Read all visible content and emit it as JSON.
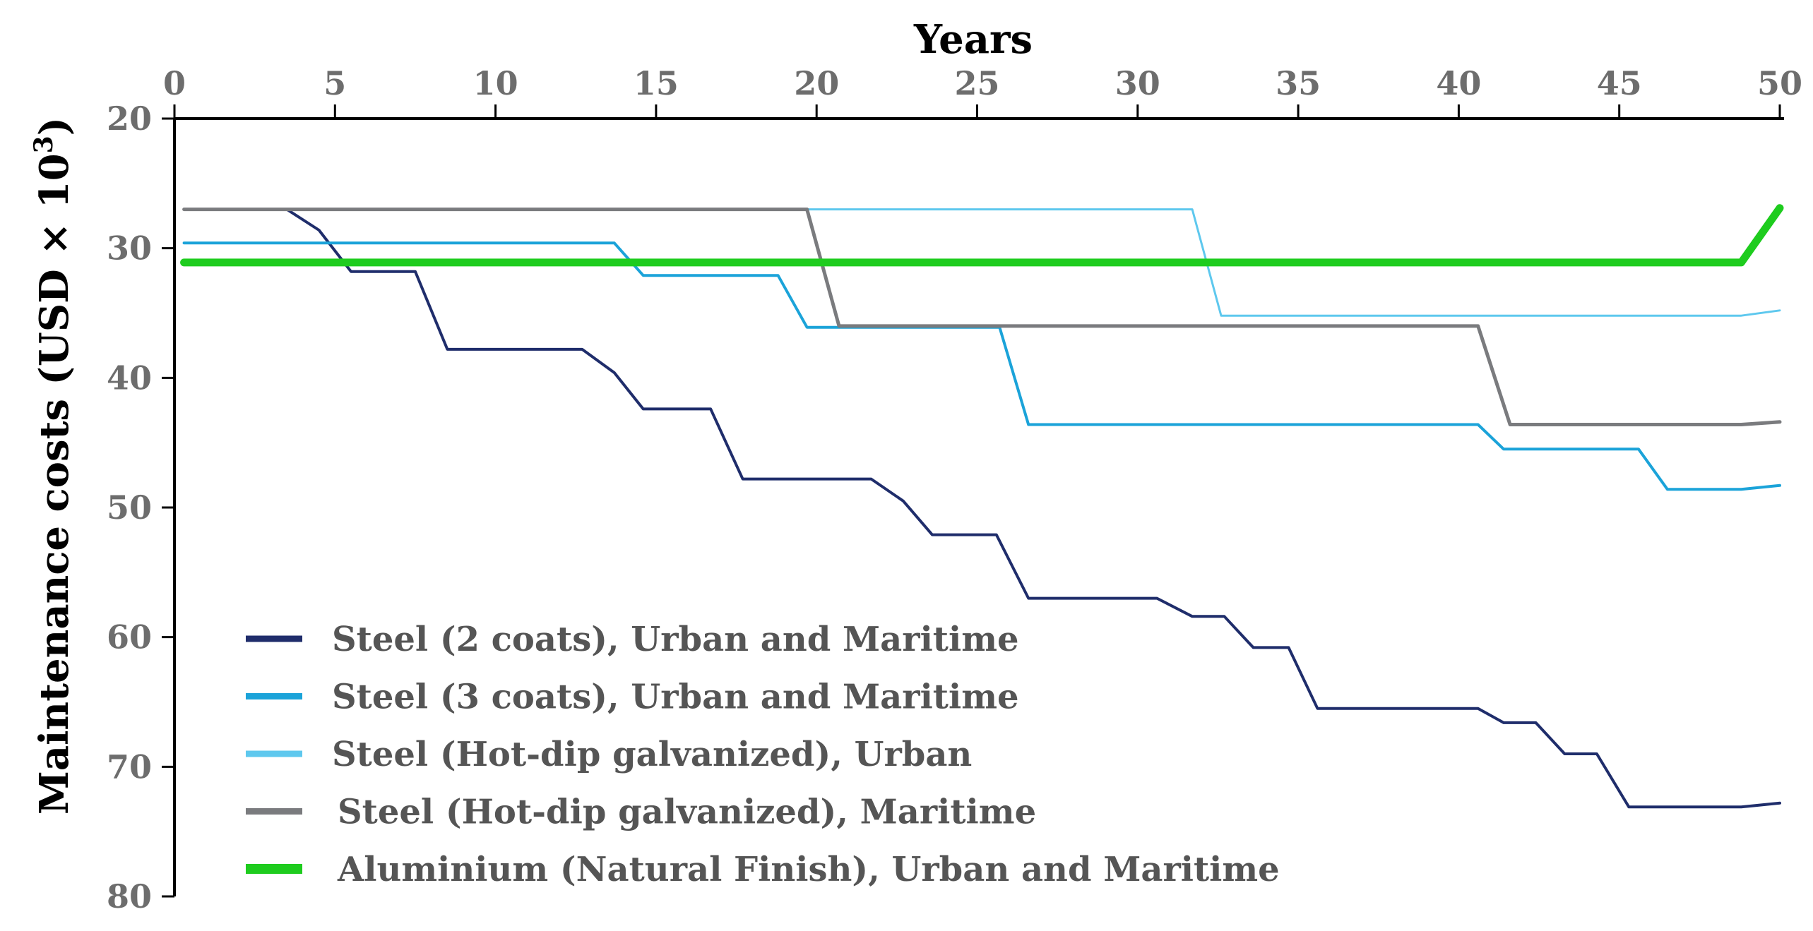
{
  "chart_data": {
    "type": "line",
    "title": "",
    "xlabel": "Years",
    "ylabel": "Maintenance costs  (USD × 10",
    "ylabel_superscript": "3",
    "ylabel_close": ")",
    "xlim": [
      0,
      50
    ],
    "ylim": [
      20,
      80
    ],
    "y_inverted": true,
    "x_axis_position": "top",
    "x_ticks": [
      0,
      5,
      10,
      15,
      20,
      25,
      30,
      35,
      40,
      45,
      50
    ],
    "x_tick_labels": [
      "0",
      "5",
      "10",
      "15",
      "20",
      "25",
      "30",
      "35",
      "40",
      "45",
      "50"
    ],
    "y_ticks": [
      20,
      30,
      40,
      50,
      60,
      70,
      80
    ],
    "y_tick_labels": [
      "20",
      "30",
      "40",
      "50",
      "60",
      "70",
      "80"
    ],
    "grid": false,
    "legend_position": "bottom-left",
    "series": [
      {
        "name": "Steel (2 coats), Urban and Maritime",
        "color": "#1f2d6b",
        "width": 4,
        "points": [
          [
            0.3,
            27
          ],
          [
            3.5,
            27
          ],
          [
            4.5,
            28.6
          ],
          [
            5.5,
            31.8
          ],
          [
            7.5,
            31.8
          ],
          [
            8.5,
            37.8
          ],
          [
            12.7,
            37.8
          ],
          [
            13.7,
            39.6
          ],
          [
            14.6,
            42.4
          ],
          [
            16.7,
            42.4
          ],
          [
            17.7,
            47.8
          ],
          [
            21.7,
            47.8
          ],
          [
            22.7,
            49.5
          ],
          [
            23.6,
            52.1
          ],
          [
            25.6,
            52.1
          ],
          [
            26.6,
            57
          ],
          [
            30.6,
            57
          ],
          [
            31.7,
            58.4
          ],
          [
            32.7,
            58.4
          ],
          [
            33.6,
            60.8
          ],
          [
            34.7,
            60.8
          ],
          [
            35.6,
            65.5
          ],
          [
            40.6,
            65.5
          ],
          [
            41.4,
            66.6
          ],
          [
            42.4,
            66.6
          ],
          [
            43.3,
            69
          ],
          [
            44.3,
            69
          ],
          [
            45.3,
            73.1
          ],
          [
            48.8,
            73.1
          ],
          [
            50,
            72.8
          ]
        ]
      },
      {
        "name": "Steel (3 coats), Urban and Maritime",
        "color": "#1ba3d9",
        "width": 4,
        "points": [
          [
            0.3,
            29.6
          ],
          [
            13.7,
            29.6
          ],
          [
            14.6,
            32.1
          ],
          [
            18.8,
            32.1
          ],
          [
            19.7,
            36.1
          ],
          [
            25.7,
            36.1
          ],
          [
            26.6,
            43.6
          ],
          [
            40.6,
            43.6
          ],
          [
            41.4,
            45.5
          ],
          [
            45.6,
            45.5
          ],
          [
            46.5,
            48.6
          ],
          [
            48.8,
            48.6
          ],
          [
            50,
            48.3
          ]
        ]
      },
      {
        "name": "Steel (Hot-dip galvanized), Urban",
        "color": "#5ec8ee",
        "width": 3,
        "points": [
          [
            0.3,
            27
          ],
          [
            31.7,
            27
          ],
          [
            32.6,
            35.2
          ],
          [
            48.8,
            35.2
          ],
          [
            50,
            34.8
          ]
        ]
      },
      {
        "name": "Steel (Hot-dip galvanized), Maritime",
        "color": "#7a7b7e",
        "width": 5,
        "points": [
          [
            0.3,
            27
          ],
          [
            19.7,
            27
          ],
          [
            20.7,
            36
          ],
          [
            40.6,
            36
          ],
          [
            41.6,
            43.6
          ],
          [
            48.8,
            43.6
          ],
          [
            50,
            43.4
          ]
        ]
      },
      {
        "name": "Aluminium (Natural Finish), Urban and Maritime",
        "color": "#1ecc1e",
        "width": 11,
        "points": [
          [
            0.3,
            31.1
          ],
          [
            48.8,
            31.1
          ],
          [
            50,
            26.9
          ]
        ]
      }
    ]
  }
}
